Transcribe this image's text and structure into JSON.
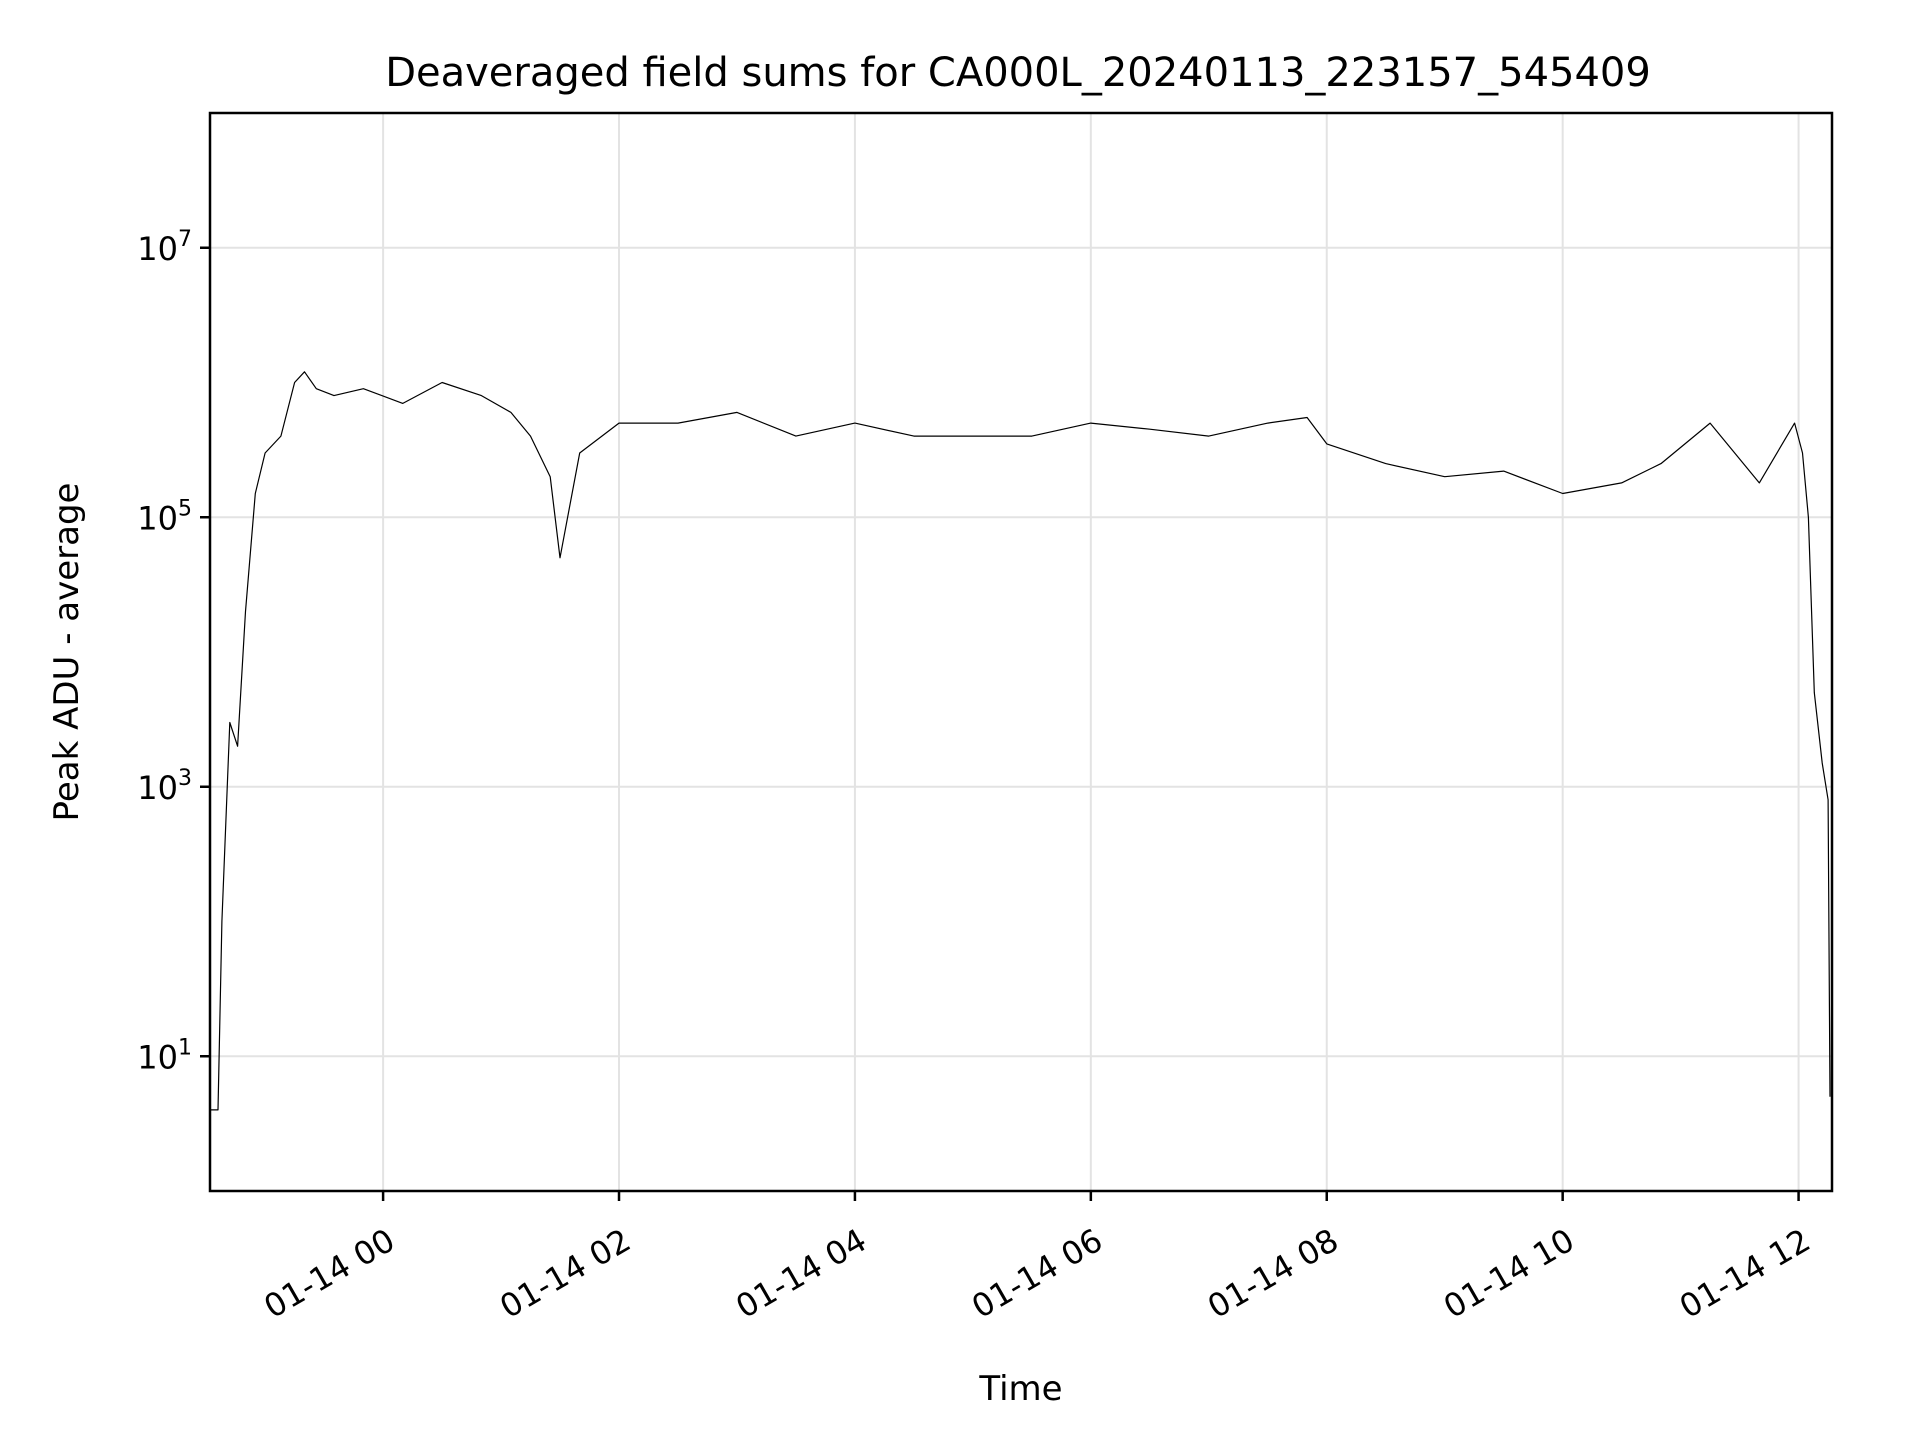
{
  "chart_data": {
    "type": "line",
    "title": "Deaveraged field sums for CA000L_20240113_223157_545409",
    "xlabel": "Time",
    "ylabel": "Peak ADU - average",
    "yscale": "log",
    "ylim": [
      1,
      100000000
    ],
    "xlim": [
      "2024-01-13 22:31:57",
      "2024-01-14 12:17:00"
    ],
    "grid": true,
    "line_color": "#000000",
    "x_ticks": [
      {
        "value": "2024-01-14 00:00",
        "label": "01-14 00"
      },
      {
        "value": "2024-01-14 02:00",
        "label": "01-14 02"
      },
      {
        "value": "2024-01-14 04:00",
        "label": "01-14 04"
      },
      {
        "value": "2024-01-14 06:00",
        "label": "01-14 06"
      },
      {
        "value": "2024-01-14 08:00",
        "label": "01-14 08"
      },
      {
        "value": "2024-01-14 10:00",
        "label": "01-14 10"
      },
      {
        "value": "2024-01-14 12:00",
        "label": "01-14 12"
      }
    ],
    "y_ticks": [
      {
        "value": 10,
        "base": "10",
        "exp": "1"
      },
      {
        "value": 1000,
        "base": "10",
        "exp": "3"
      },
      {
        "value": 100000,
        "base": "10",
        "exp": "5"
      },
      {
        "value": 10000000,
        "base": "10",
        "exp": "7"
      }
    ],
    "series": [
      {
        "x": [
          "2024-01-13 22:31:57",
          "2024-01-13 22:36",
          "2024-01-13 22:38",
          "2024-01-13 22:42",
          "2024-01-13 22:46",
          "2024-01-13 22:50",
          "2024-01-13 22:55",
          "2024-01-13 23:00",
          "2024-01-13 23:08",
          "2024-01-13 23:15",
          "2024-01-13 23:20",
          "2024-01-13 23:26",
          "2024-01-13 23:35",
          "2024-01-13 23:50",
          "2024-01-14 00:10",
          "2024-01-14 00:30",
          "2024-01-14 00:50",
          "2024-01-14 01:05",
          "2024-01-14 01:15",
          "2024-01-14 01:25",
          "2024-01-14 01:30",
          "2024-01-14 01:40",
          "2024-01-14 02:00",
          "2024-01-14 02:30",
          "2024-01-14 03:00",
          "2024-01-14 03:30",
          "2024-01-14 04:00",
          "2024-01-14 04:30",
          "2024-01-14 05:00",
          "2024-01-14 05:30",
          "2024-01-14 06:00",
          "2024-01-14 06:30",
          "2024-01-14 07:00",
          "2024-01-14 07:30",
          "2024-01-14 07:50",
          "2024-01-14 08:00",
          "2024-01-14 08:30",
          "2024-01-14 09:00",
          "2024-01-14 09:30",
          "2024-01-14 10:00",
          "2024-01-14 10:30",
          "2024-01-14 10:50",
          "2024-01-14 11:15",
          "2024-01-14 11:40",
          "2024-01-14 11:58",
          "2024-01-14 12:02",
          "2024-01-14 12:05",
          "2024-01-14 12:08",
          "2024-01-14 12:12",
          "2024-01-14 12:15",
          "2024-01-14 12:16"
        ],
        "y": [
          4,
          4,
          100,
          3000,
          2000,
          20000,
          150000,
          300000,
          400000,
          1000000,
          1200000,
          900000,
          800000,
          900000,
          700000,
          1000000,
          800000,
          600000,
          400000,
          200000,
          50000,
          300000,
          500000,
          500000,
          600000,
          400000,
          500000,
          400000,
          400000,
          400000,
          500000,
          450000,
          400000,
          500000,
          550000,
          350000,
          250000,
          200000,
          220000,
          150000,
          180000,
          250000,
          500000,
          180000,
          500000,
          300000,
          100000,
          5000,
          1500,
          800,
          5
        ]
      }
    ]
  }
}
